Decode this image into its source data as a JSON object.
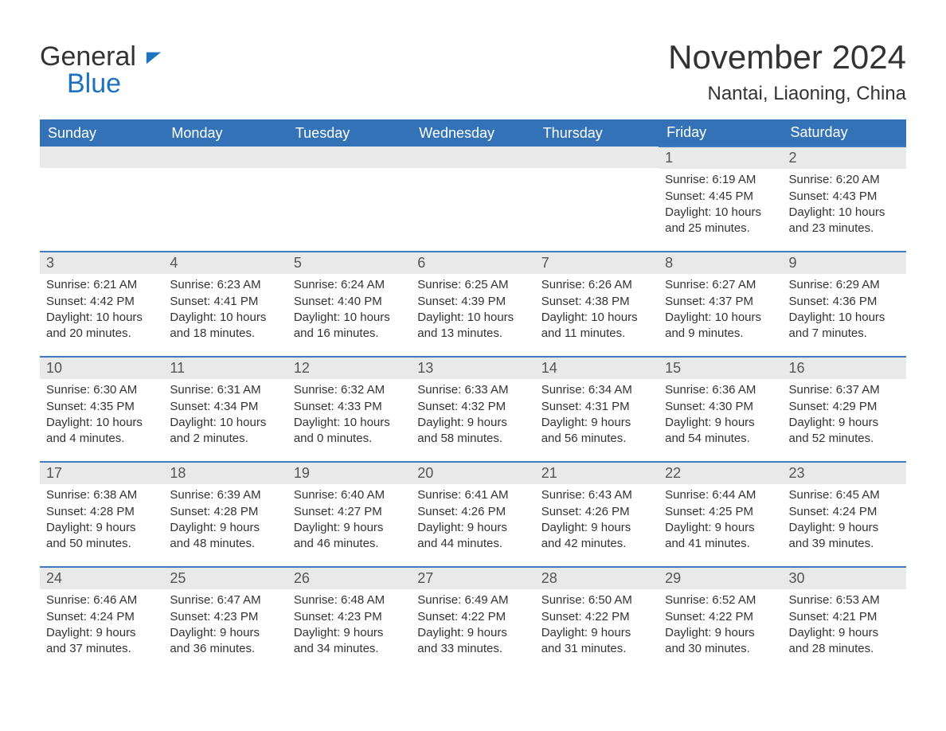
{
  "brand": {
    "text1": "General",
    "text2": "Blue",
    "accent": "#1d72c2"
  },
  "title": "November 2024",
  "subtitle": "Nantai, Liaoning, China",
  "colors": {
    "header_bg": "#3372b6",
    "header_text": "#ffffff",
    "row_divider": "#3d7cc0",
    "daynum_bg": "#e9e9e9",
    "text": "#333333",
    "background": "#ffffff"
  },
  "weekdays": [
    "Sunday",
    "Monday",
    "Tuesday",
    "Wednesday",
    "Thursday",
    "Friday",
    "Saturday"
  ],
  "weeks": [
    [
      null,
      null,
      null,
      null,
      null,
      {
        "n": "1",
        "sunrise": "6:19 AM",
        "sunset": "4:45 PM",
        "day_l1": "Daylight: 10 hours",
        "day_l2": "and 25 minutes."
      },
      {
        "n": "2",
        "sunrise": "6:20 AM",
        "sunset": "4:43 PM",
        "day_l1": "Daylight: 10 hours",
        "day_l2": "and 23 minutes."
      }
    ],
    [
      {
        "n": "3",
        "sunrise": "6:21 AM",
        "sunset": "4:42 PM",
        "day_l1": "Daylight: 10 hours",
        "day_l2": "and 20 minutes."
      },
      {
        "n": "4",
        "sunrise": "6:23 AM",
        "sunset": "4:41 PM",
        "day_l1": "Daylight: 10 hours",
        "day_l2": "and 18 minutes."
      },
      {
        "n": "5",
        "sunrise": "6:24 AM",
        "sunset": "4:40 PM",
        "day_l1": "Daylight: 10 hours",
        "day_l2": "and 16 minutes."
      },
      {
        "n": "6",
        "sunrise": "6:25 AM",
        "sunset": "4:39 PM",
        "day_l1": "Daylight: 10 hours",
        "day_l2": "and 13 minutes."
      },
      {
        "n": "7",
        "sunrise": "6:26 AM",
        "sunset": "4:38 PM",
        "day_l1": "Daylight: 10 hours",
        "day_l2": "and 11 minutes."
      },
      {
        "n": "8",
        "sunrise": "6:27 AM",
        "sunset": "4:37 PM",
        "day_l1": "Daylight: 10 hours",
        "day_l2": "and 9 minutes."
      },
      {
        "n": "9",
        "sunrise": "6:29 AM",
        "sunset": "4:36 PM",
        "day_l1": "Daylight: 10 hours",
        "day_l2": "and 7 minutes."
      }
    ],
    [
      {
        "n": "10",
        "sunrise": "6:30 AM",
        "sunset": "4:35 PM",
        "day_l1": "Daylight: 10 hours",
        "day_l2": "and 4 minutes."
      },
      {
        "n": "11",
        "sunrise": "6:31 AM",
        "sunset": "4:34 PM",
        "day_l1": "Daylight: 10 hours",
        "day_l2": "and 2 minutes."
      },
      {
        "n": "12",
        "sunrise": "6:32 AM",
        "sunset": "4:33 PM",
        "day_l1": "Daylight: 10 hours",
        "day_l2": "and 0 minutes."
      },
      {
        "n": "13",
        "sunrise": "6:33 AM",
        "sunset": "4:32 PM",
        "day_l1": "Daylight: 9 hours",
        "day_l2": "and 58 minutes."
      },
      {
        "n": "14",
        "sunrise": "6:34 AM",
        "sunset": "4:31 PM",
        "day_l1": "Daylight: 9 hours",
        "day_l2": "and 56 minutes."
      },
      {
        "n": "15",
        "sunrise": "6:36 AM",
        "sunset": "4:30 PM",
        "day_l1": "Daylight: 9 hours",
        "day_l2": "and 54 minutes."
      },
      {
        "n": "16",
        "sunrise": "6:37 AM",
        "sunset": "4:29 PM",
        "day_l1": "Daylight: 9 hours",
        "day_l2": "and 52 minutes."
      }
    ],
    [
      {
        "n": "17",
        "sunrise": "6:38 AM",
        "sunset": "4:28 PM",
        "day_l1": "Daylight: 9 hours",
        "day_l2": "and 50 minutes."
      },
      {
        "n": "18",
        "sunrise": "6:39 AM",
        "sunset": "4:28 PM",
        "day_l1": "Daylight: 9 hours",
        "day_l2": "and 48 minutes."
      },
      {
        "n": "19",
        "sunrise": "6:40 AM",
        "sunset": "4:27 PM",
        "day_l1": "Daylight: 9 hours",
        "day_l2": "and 46 minutes."
      },
      {
        "n": "20",
        "sunrise": "6:41 AM",
        "sunset": "4:26 PM",
        "day_l1": "Daylight: 9 hours",
        "day_l2": "and 44 minutes."
      },
      {
        "n": "21",
        "sunrise": "6:43 AM",
        "sunset": "4:26 PM",
        "day_l1": "Daylight: 9 hours",
        "day_l2": "and 42 minutes."
      },
      {
        "n": "22",
        "sunrise": "6:44 AM",
        "sunset": "4:25 PM",
        "day_l1": "Daylight: 9 hours",
        "day_l2": "and 41 minutes."
      },
      {
        "n": "23",
        "sunrise": "6:45 AM",
        "sunset": "4:24 PM",
        "day_l1": "Daylight: 9 hours",
        "day_l2": "and 39 minutes."
      }
    ],
    [
      {
        "n": "24",
        "sunrise": "6:46 AM",
        "sunset": "4:24 PM",
        "day_l1": "Daylight: 9 hours",
        "day_l2": "and 37 minutes."
      },
      {
        "n": "25",
        "sunrise": "6:47 AM",
        "sunset": "4:23 PM",
        "day_l1": "Daylight: 9 hours",
        "day_l2": "and 36 minutes."
      },
      {
        "n": "26",
        "sunrise": "6:48 AM",
        "sunset": "4:23 PM",
        "day_l1": "Daylight: 9 hours",
        "day_l2": "and 34 minutes."
      },
      {
        "n": "27",
        "sunrise": "6:49 AM",
        "sunset": "4:22 PM",
        "day_l1": "Daylight: 9 hours",
        "day_l2": "and 33 minutes."
      },
      {
        "n": "28",
        "sunrise": "6:50 AM",
        "sunset": "4:22 PM",
        "day_l1": "Daylight: 9 hours",
        "day_l2": "and 31 minutes."
      },
      {
        "n": "29",
        "sunrise": "6:52 AM",
        "sunset": "4:22 PM",
        "day_l1": "Daylight: 9 hours",
        "day_l2": "and 30 minutes."
      },
      {
        "n": "30",
        "sunrise": "6:53 AM",
        "sunset": "4:21 PM",
        "day_l1": "Daylight: 9 hours",
        "day_l2": "and 28 minutes."
      }
    ]
  ],
  "labels": {
    "sunrise_prefix": "Sunrise: ",
    "sunset_prefix": "Sunset: "
  }
}
